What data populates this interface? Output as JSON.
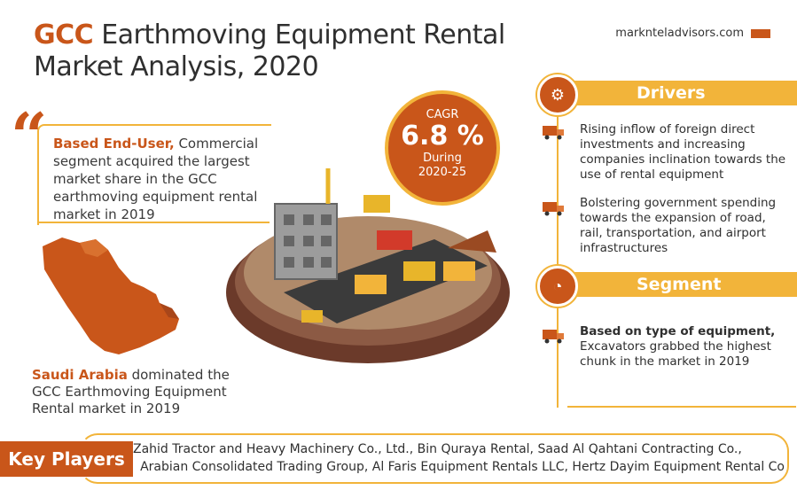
{
  "title": {
    "highlight": "GCC",
    "line1_rest": " Earthmoving Equipment Rental",
    "line2": "Market Analysis, 2020"
  },
  "brand": {
    "site": "marknteladvisors.com"
  },
  "quote": {
    "highlight": "Based End-User,",
    "text": " Commercial segment acquired the largest market share in the GCC earthmoving equipment rental market in 2019"
  },
  "saudi": {
    "highlight": "Saudi Arabia",
    "text": " dominated the GCC Earthmoving Equipment Rental market in 2019"
  },
  "cagr": {
    "label": "CAGR",
    "value": "6.8 %",
    "during": "During",
    "period": "2020-25"
  },
  "drivers": {
    "title": "Drivers",
    "items": [
      "Rising inflow of foreign direct investments and increasing companies inclination towards the use of rental equipment",
      "Bolstering government spending towards the expansion of road, rail, transportation, and airport infrastructures"
    ]
  },
  "segment": {
    "title": "Segment",
    "highlight": "Based on type of equipment,",
    "text": " Excavators grabbed the highest chunk in the market in 2019"
  },
  "key_players": {
    "label": "Key Players",
    "line1": "Zahid Tractor and Heavy Machinery Co., Ltd., Bin Quraya Rental, Saad Al Qahtani Contracting Co.,",
    "line2": "Arabian Consolidated Trading Group, Al Faris Equipment Rentals LLC, Hertz Dayim Equipment Rental Co"
  },
  "colors": {
    "accent": "#c9561a",
    "highlight": "#f2b43a"
  }
}
